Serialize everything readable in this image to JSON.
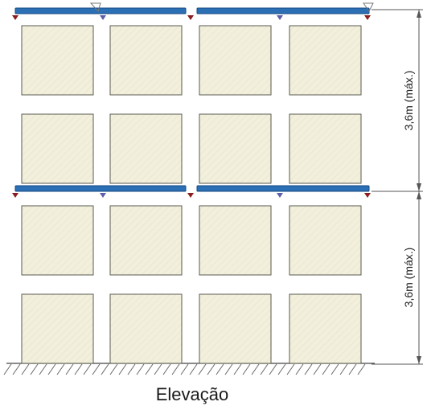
{
  "caption": "Elevação",
  "dimensions": [
    "3,6m (máx.)",
    "3,6m (máx.)"
  ],
  "colors": {
    "beam": "#2b6fb4",
    "beam_edge": "#174a82",
    "block_fill": "#f2f0dc",
    "block_edge": "#5a5a50",
    "marker_red": "#8a1e1e",
    "marker_blue": "#5b5fa8",
    "ground": "#666666"
  },
  "layout": {
    "levels": 2,
    "block_rows_per_level": 2,
    "block_columns": 4
  }
}
